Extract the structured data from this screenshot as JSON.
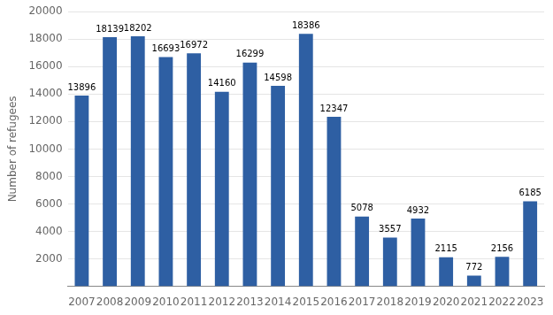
{
  "chart_data": {
    "type": "bar",
    "categories": [
      "2007",
      "2008",
      "2009",
      "2010",
      "2011",
      "2012",
      "2013",
      "2014",
      "2015",
      "2016",
      "2017",
      "2018",
      "2019",
      "2020",
      "2021",
      "2022",
      "2023"
    ],
    "values": [
      13896,
      18139,
      18202,
      16693,
      16972,
      14160,
      16299,
      14598,
      18386,
      12347,
      5078,
      3557,
      4932,
      2115,
      772,
      2156,
      6185
    ],
    "color": "#2E5FA3",
    "ylabel": "Number of refugees",
    "ylim": [
      0,
      20000
    ],
    "yticks": [
      2000,
      4000,
      6000,
      8000,
      10000,
      12000,
      14000,
      16000,
      18000,
      20000
    ],
    "grid": true,
    "data_labels": true
  }
}
